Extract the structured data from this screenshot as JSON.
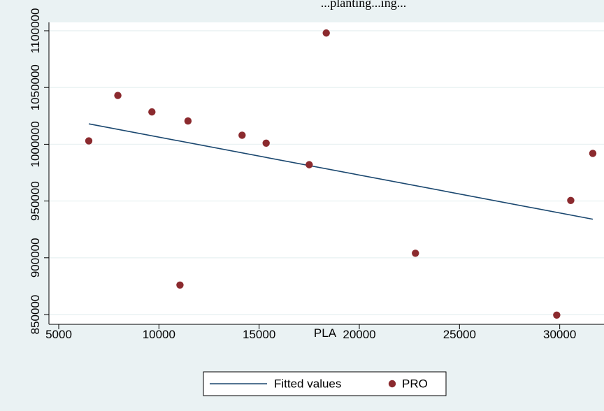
{
  "chart_data": {
    "type": "scatter",
    "title": "...planting...ing...",
    "xlabel": "PLA",
    "ylabel": "",
    "xlim": [
      5000,
      32000
    ],
    "ylim": [
      847000,
      1107000
    ],
    "x_ticks": [
      5000,
      10000,
      15000,
      20000,
      25000,
      30000
    ],
    "y_ticks": [
      850000,
      900000,
      950000,
      1000000,
      1050000,
      1100000
    ],
    "grid": true,
    "legend_position": "bottom",
    "series": [
      {
        "name": "PRO",
        "type": "scatter",
        "color": "#8b2a2e",
        "points": [
          {
            "x": 6500,
            "y": 1003000
          },
          {
            "x": 7950,
            "y": 1043000
          },
          {
            "x": 9650,
            "y": 1028500
          },
          {
            "x": 11050,
            "y": 876000
          },
          {
            "x": 11450,
            "y": 1020500
          },
          {
            "x": 14150,
            "y": 1008000
          },
          {
            "x": 15350,
            "y": 1001000
          },
          {
            "x": 17500,
            "y": 982000
          },
          {
            "x": 18350,
            "y": 1098000
          },
          {
            "x": 22800,
            "y": 904000
          },
          {
            "x": 29850,
            "y": 849500
          },
          {
            "x": 30550,
            "y": 950500
          },
          {
            "x": 31650,
            "y": 992000
          }
        ]
      },
      {
        "name": "Fitted values",
        "type": "line",
        "color": "#1a476f",
        "points": [
          {
            "x": 6500,
            "y": 1018000
          },
          {
            "x": 31650,
            "y": 934000
          }
        ]
      }
    ]
  }
}
